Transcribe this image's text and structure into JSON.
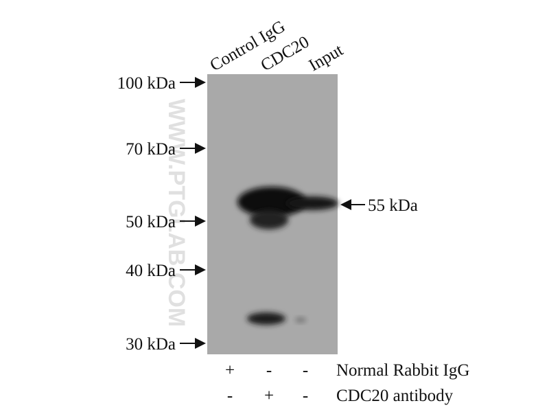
{
  "lanes": [
    "Control IgG",
    "CDC20",
    "Input"
  ],
  "markers": [
    "100 kDa",
    "70 kDa",
    "50 kDa",
    "40 kDa",
    "30 kDa"
  ],
  "band_label": "55 kDa",
  "watermark": "WWW.PTGLAB.COM",
  "conditions": [
    {
      "label": "Normal Rabbit IgG",
      "signs": [
        "+",
        "-",
        "-"
      ]
    },
    {
      "label": "CDC20 antibody",
      "signs": [
        "-",
        "+",
        "-"
      ]
    }
  ]
}
